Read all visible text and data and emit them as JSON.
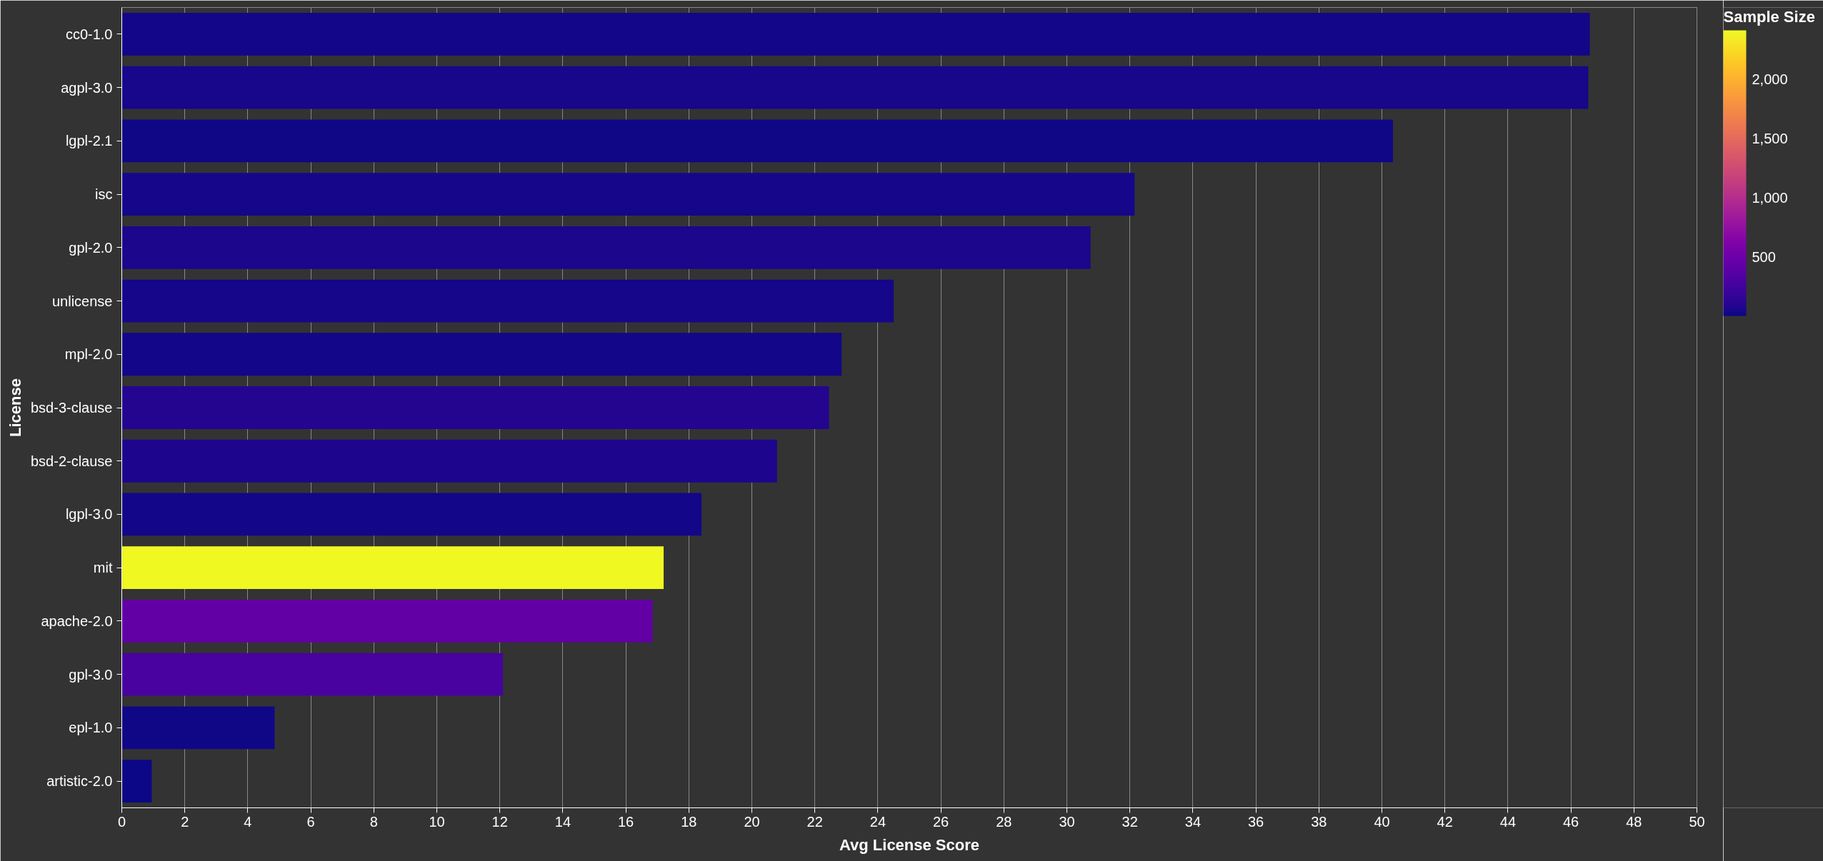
{
  "chart_data": {
    "type": "bar",
    "orientation": "horizontal",
    "categories": [
      "cc0-1.0",
      "agpl-3.0",
      "lgpl-2.1",
      "isc",
      "gpl-2.0",
      "unlicense",
      "mpl-2.0",
      "bsd-3-clause",
      "bsd-2-clause",
      "lgpl-3.0",
      "mit",
      "apache-2.0",
      "gpl-3.0",
      "epl-1.0",
      "artistic-2.0"
    ],
    "values": [
      46.6,
      46.55,
      40.35,
      32.15,
      30.75,
      24.5,
      22.85,
      22.45,
      20.8,
      18.4,
      17.2,
      16.85,
      12.1,
      4.85,
      0.95
    ],
    "cvalues": [
      20,
      45,
      10,
      30,
      55,
      35,
      20,
      90,
      65,
      25,
      2410,
      440,
      290,
      15,
      5
    ],
    "clim": [
      0,
      2410
    ],
    "cticks": [
      500,
      {
        "value": 1000,
        "label": "1,000"
      },
      {
        "value": 1500,
        "label": "1,500"
      },
      {
        "value": 2000,
        "label": "2,000"
      }
    ],
    "clabel": "Sample Size",
    "xlabel": "Avg License Score",
    "ylabel": "License",
    "xlim": [
      0,
      50
    ],
    "xticks": [
      0,
      2,
      4,
      6,
      8,
      10,
      12,
      14,
      16,
      18,
      20,
      22,
      24,
      26,
      28,
      30,
      32,
      34,
      36,
      38,
      40,
      42,
      44,
      46,
      48,
      50
    ],
    "grid": "x"
  }
}
